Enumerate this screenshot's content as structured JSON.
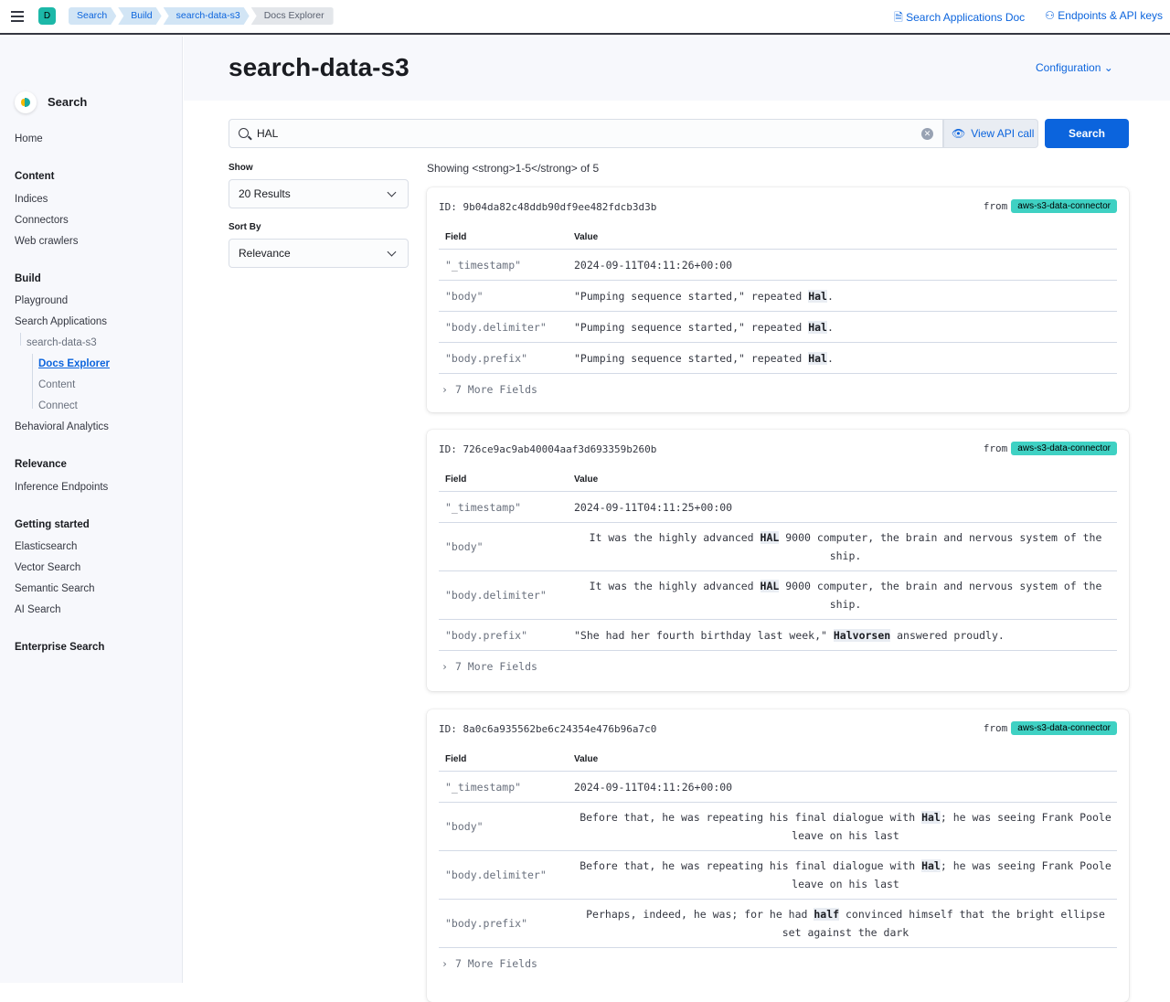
{
  "topbar": {
    "deployment_initial": "D",
    "breadcrumbs": [
      "Search",
      "Build",
      "search-data-s3",
      "Docs Explorer"
    ],
    "links": [
      "Search Applications Doc",
      "Endpoints & API keys"
    ]
  },
  "sidebar": {
    "title": "Search",
    "home": "Home",
    "sections": [
      {
        "head": "Content",
        "items": [
          "Indices",
          "Connectors",
          "Web crawlers"
        ]
      },
      {
        "head": "Build",
        "items": [
          "Playground",
          "Search Applications"
        ],
        "app": "search-data-s3",
        "app_items": [
          "Docs Explorer",
          "Content",
          "Connect"
        ],
        "after": "Behavioral Analytics"
      },
      {
        "head": "Relevance",
        "items": [
          "Inference Endpoints"
        ]
      },
      {
        "head": "Getting started",
        "items": [
          "Elasticsearch",
          "Vector Search",
          "Semantic Search",
          "AI Search"
        ]
      },
      {
        "head": "Enterprise Search",
        "items": []
      }
    ]
  },
  "page": {
    "title": "search-data-s3",
    "configuration": "Configuration"
  },
  "search": {
    "value": "HAL",
    "view_api": "View API call",
    "button": "Search"
  },
  "filters": {
    "show_label": "Show",
    "show_value": "20 Results",
    "sort_label": "Sort By",
    "sort_value": "Relevance"
  },
  "results": {
    "showing": "Showing <strong>1-5</strong> of 5",
    "field_header": "Field",
    "value_header": "Value",
    "from": "from",
    "more_fields": "7 More Fields",
    "cards": [
      {
        "id": "ID: 9b04da82c48ddb90df9ee482fdcb3d3b",
        "source": "aws-s3-data-connector",
        "rows": [
          {
            "field": "\"_timestamp\"",
            "pre": "2024-09-11T04:11:26+00:00",
            "hl": "",
            "post": ""
          },
          {
            "field": "\"body\"",
            "pre": "\"Pumping sequence started,\" repeated ",
            "hl": "Hal",
            "post": "."
          },
          {
            "field": "\"body.delimiter\"",
            "pre": "\"Pumping sequence started,\" repeated ",
            "hl": "Hal",
            "post": "."
          },
          {
            "field": "\"body.prefix\"",
            "pre": "\"Pumping sequence started,\" repeated ",
            "hl": "Hal",
            "post": "."
          }
        ]
      },
      {
        "id": "ID: 726ce9ac9ab40004aaf3d693359b260b",
        "source": "aws-s3-data-connector",
        "rows": [
          {
            "field": "\"_timestamp\"",
            "pre": "2024-09-11T04:11:25+00:00",
            "hl": "",
            "post": ""
          },
          {
            "field": "\"body\"",
            "pre": "It was the highly advanced ",
            "hl": "HAL",
            "post": " 9000 computer, the brain and nervous system of the ship."
          },
          {
            "field": "\"body.delimiter\"",
            "pre": "It was the highly advanced ",
            "hl": "HAL",
            "post": " 9000 computer, the brain and nervous system of the ship."
          },
          {
            "field": "\"body.prefix\"",
            "pre": "\"She had her fourth birthday last week,\" ",
            "hl": "Halvorsen",
            "post": " answered proudly."
          }
        ]
      },
      {
        "id": "ID: 8a0c6a935562be6c24354e476b96a7c0",
        "source": "aws-s3-data-connector",
        "rows": [
          {
            "field": "\"_timestamp\"",
            "pre": "2024-09-11T04:11:26+00:00",
            "hl": "",
            "post": ""
          },
          {
            "field": "\"body\"",
            "pre": "Before that, he was repeating his final dialogue with ",
            "hl": "Hal",
            "post": "; he was seeing Frank Poole leave on his last"
          },
          {
            "field": "\"body.delimiter\"",
            "pre": "Before that, he was repeating his final dialogue with ",
            "hl": "Hal",
            "post": "; he was seeing Frank Poole leave on his last"
          },
          {
            "field": "\"body.prefix\"",
            "pre": "Perhaps, indeed, he was; for he had ",
            "hl": "half",
            "post": " convinced himself that the bright ellipse set against the dark"
          }
        ]
      }
    ]
  },
  "colors": {
    "accent": "#0b64dd",
    "badge": "#3fd1c3"
  }
}
